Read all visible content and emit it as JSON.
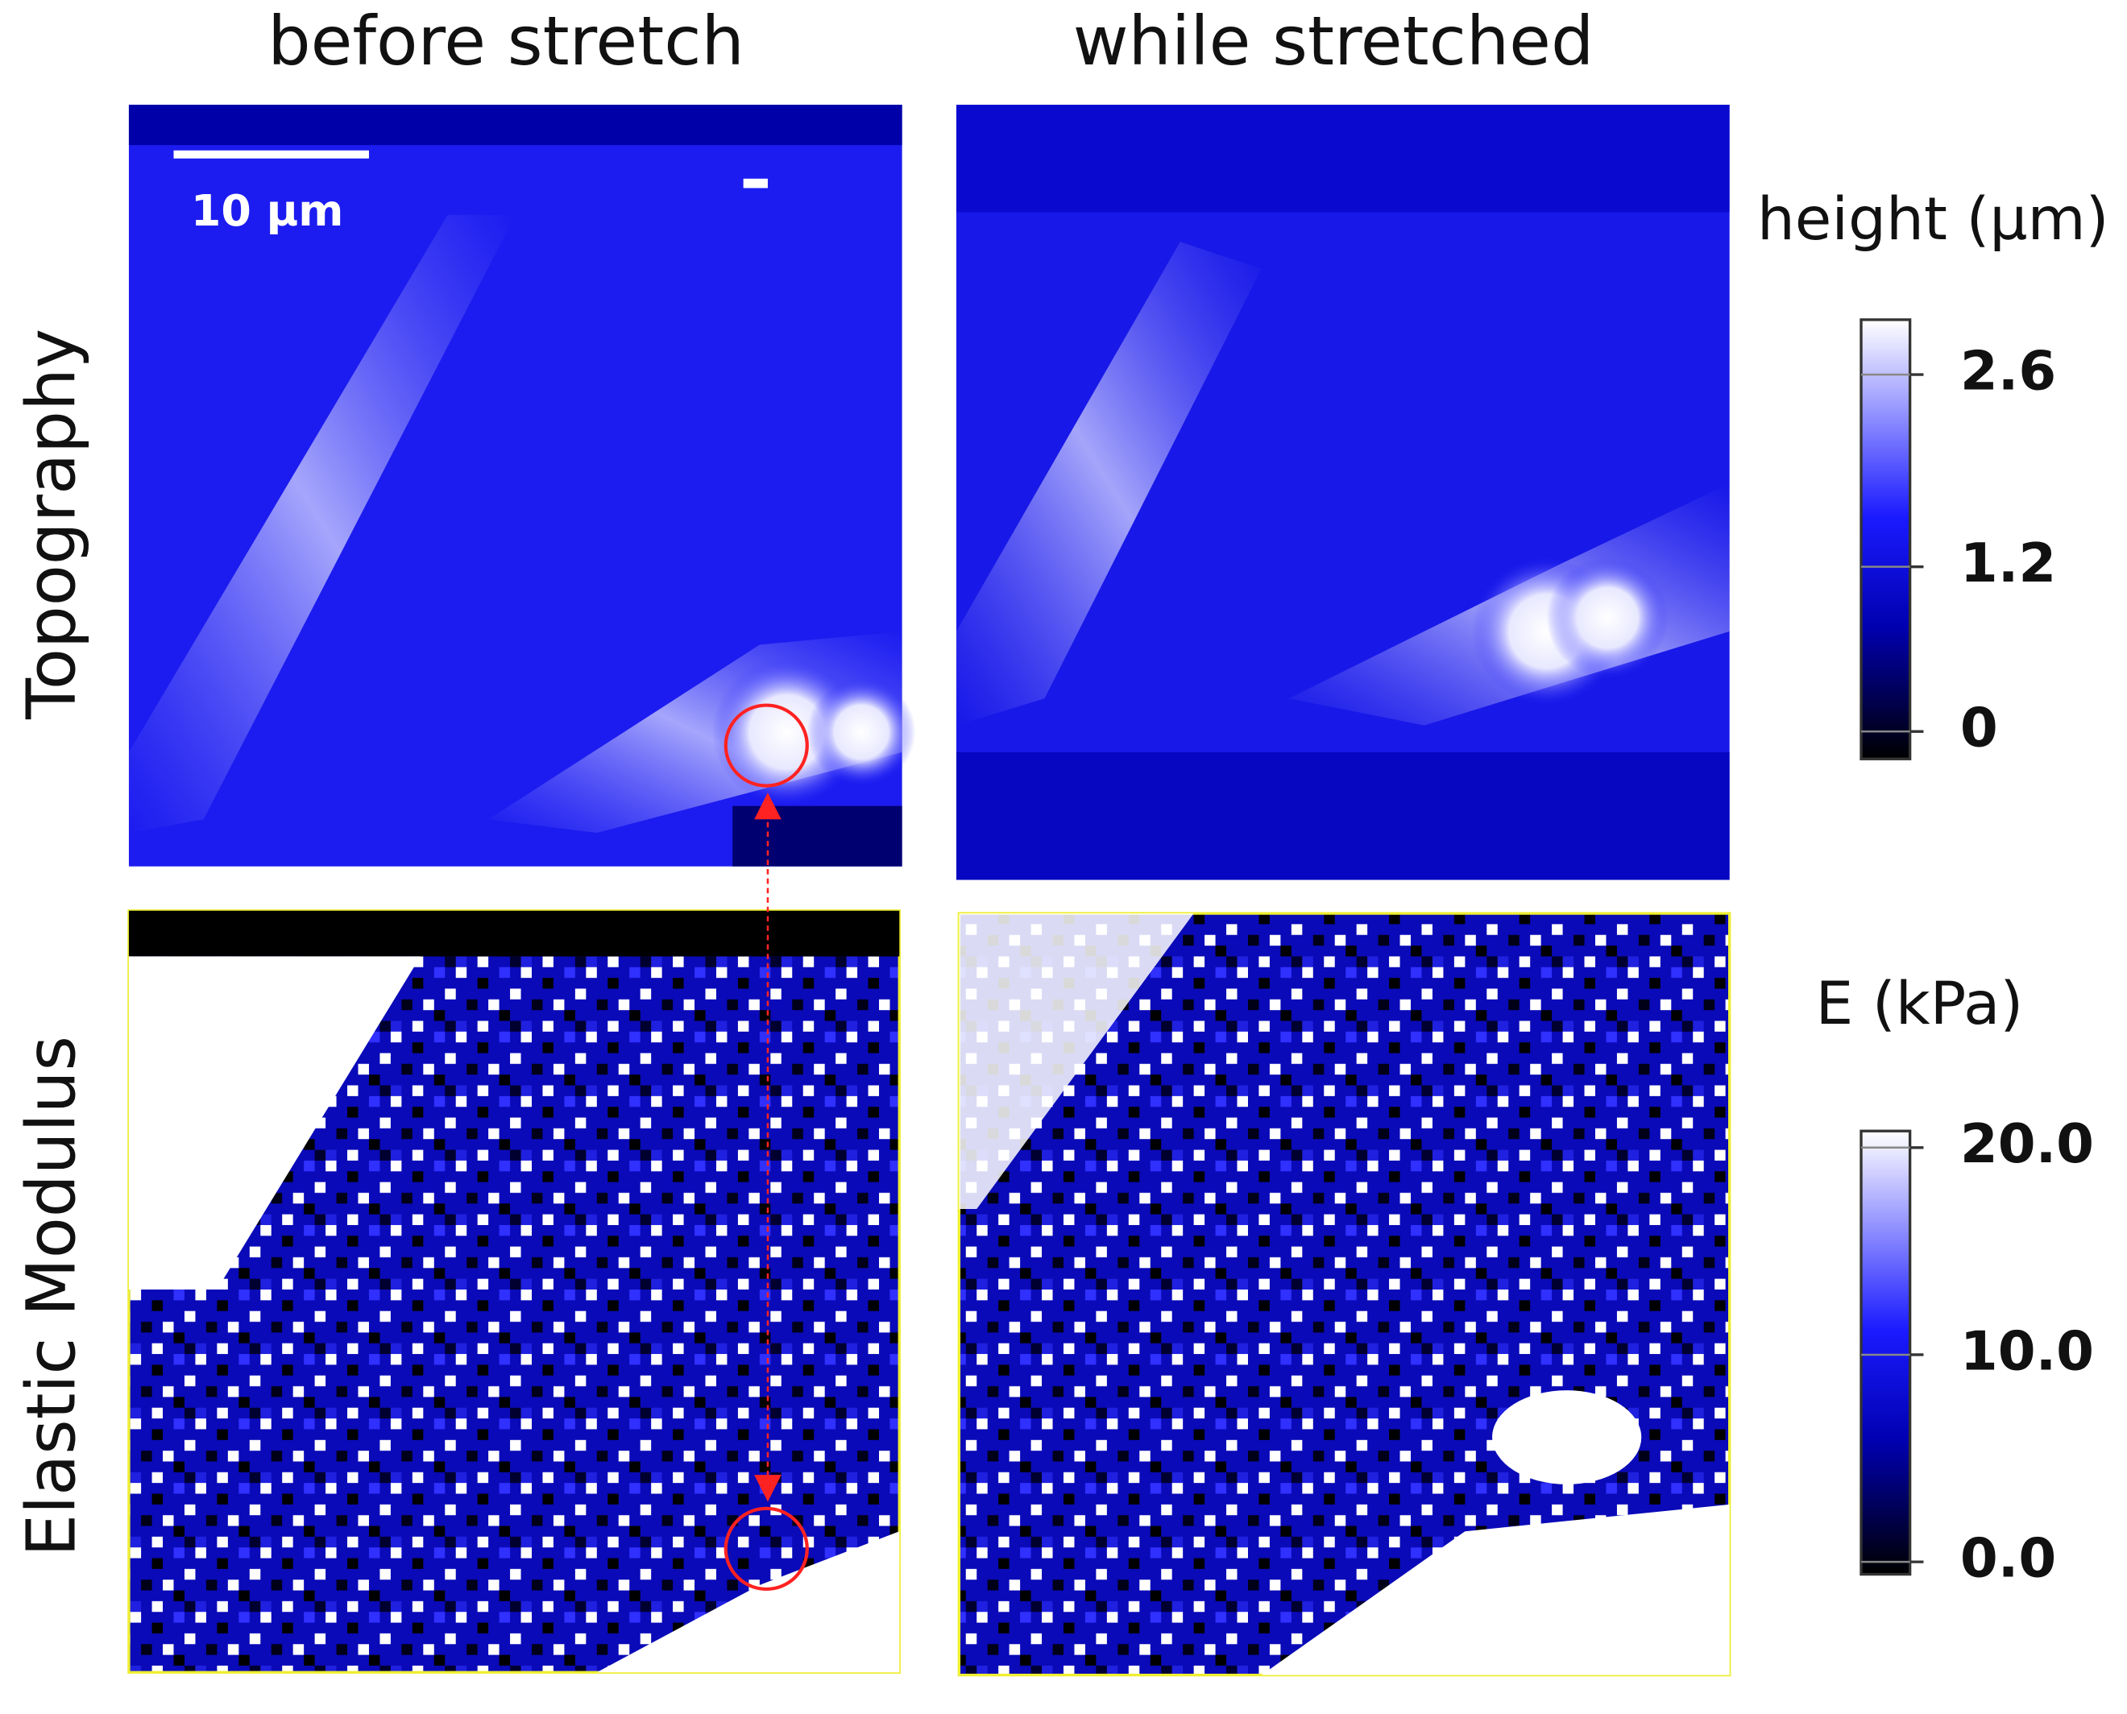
{
  "columns": [
    "before stretch",
    "while stretched"
  ],
  "rows": [
    "Topography",
    "Elastic Modulus"
  ],
  "scale_bar": "10 µm",
  "colorbars": [
    {
      "title": "height (µm)",
      "lim": [
        -0.2,
        3.0
      ],
      "ticks": [
        0,
        1.2,
        2.6
      ]
    },
    {
      "title": "E (kPa)",
      "lim": [
        -0.6,
        20.8
      ],
      "ticks": [
        {
          "value": 0,
          "label": "0.0"
        },
        {
          "value": 10,
          "label": "10.0"
        },
        {
          "value": 20,
          "label": "20.0"
        }
      ]
    }
  ]
}
